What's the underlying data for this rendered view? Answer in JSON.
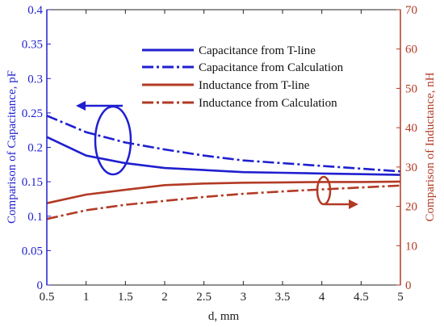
{
  "chart_data": {
    "type": "line",
    "xlabel": "d, mm",
    "ylabel_left": "Comparison of Capacitance, pF",
    "ylabel_right": "Comparison of Inductance, nH",
    "xlim": [
      0.5,
      5
    ],
    "ylim_left": [
      0,
      0.4
    ],
    "ylim_right": [
      0,
      70
    ],
    "x_ticks": [
      "0.5",
      "1",
      "1.5",
      "2",
      "2.5",
      "3",
      "3.5",
      "4",
      "4.5",
      "5"
    ],
    "y_left_ticks": [
      "0",
      "0.05",
      "0.1",
      "0.15",
      "0.2",
      "0.25",
      "0.3",
      "0.35",
      "0.4"
    ],
    "y_right_ticks": [
      "0",
      "10",
      "20",
      "30",
      "40",
      "50",
      "60",
      "70"
    ],
    "legend_position": "top-right",
    "grid": false,
    "series": [
      {
        "name": "Capacitance from T-line",
        "axis": "left",
        "color": "#1f1fd0",
        "style": "solid",
        "x": [
          0.5,
          1,
          1.5,
          2,
          2.5,
          3,
          3.5,
          4,
          4.5,
          5
        ],
        "y": [
          0.215,
          0.188,
          0.177,
          0.17,
          0.167,
          0.164,
          0.163,
          0.162,
          0.161,
          0.16
        ]
      },
      {
        "name": "Capacitance from Calculation",
        "axis": "left",
        "color": "#1f1fd0",
        "style": "dashdot",
        "x": [
          0.5,
          1,
          1.5,
          2,
          2.5,
          3,
          3.5,
          4,
          4.5,
          5
        ],
        "y": [
          0.246,
          0.222,
          0.207,
          0.197,
          0.188,
          0.181,
          0.177,
          0.173,
          0.169,
          0.165
        ]
      },
      {
        "name": "Inductance from T-line",
        "axis": "right",
        "color": "#b23a25",
        "style": "solid",
        "x": [
          0.5,
          1,
          1.5,
          2,
          2.5,
          3,
          3.5,
          4,
          4.5,
          5
        ],
        "y": [
          20.8,
          23.0,
          24.2,
          25.4,
          25.8,
          26.0,
          26.1,
          26.2,
          26.2,
          26.3
        ]
      },
      {
        "name": "Inductance from Calculation",
        "axis": "right",
        "color": "#b23a25",
        "style": "dashdot",
        "x": [
          0.5,
          1,
          1.5,
          2,
          2.5,
          3,
          3.5,
          4,
          4.5,
          5
        ],
        "y": [
          16.8,
          19.0,
          20.4,
          21.4,
          22.4,
          23.2,
          23.8,
          24.3,
          24.8,
          25.3
        ]
      }
    ]
  }
}
